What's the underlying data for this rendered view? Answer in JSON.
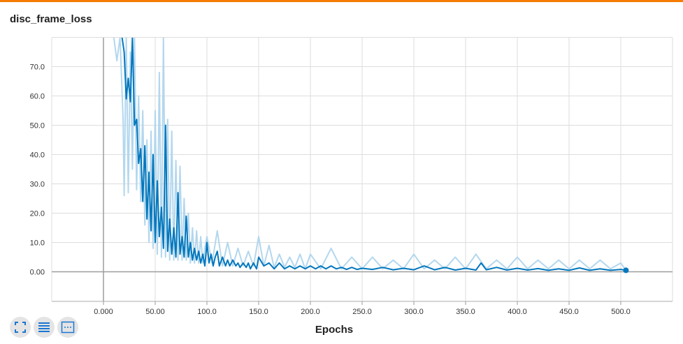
{
  "title": "disc_frame_loss",
  "colors": {
    "accent": "#f57c00",
    "line": "#0277bd",
    "raw": "#b3d7ee"
  },
  "controls": [
    {
      "name": "expand-chart-icon"
    },
    {
      "name": "list-icon"
    },
    {
      "name": "fit-domain-icon"
    }
  ],
  "chart_data": {
    "type": "line",
    "title": "disc_frame_loss",
    "xlabel": "Epochs",
    "ylabel": "",
    "xlim": [
      -50,
      550
    ],
    "ylim": [
      -10,
      80
    ],
    "x_ticks": [
      "0.000",
      "50.00",
      "100.0",
      "150.0",
      "200.0",
      "250.0",
      "300.0",
      "350.0",
      "400.0",
      "450.0",
      "500.0"
    ],
    "y_ticks": [
      "0.00",
      "10.0",
      "20.0",
      "30.0",
      "40.0",
      "50.0",
      "60.0",
      "70.0"
    ],
    "grid": true,
    "series": [
      {
        "role": "raw",
        "x": [
          10,
          13,
          16,
          19,
          20,
          22,
          24,
          26,
          28,
          30,
          32,
          34,
          36,
          38,
          40,
          42,
          44,
          46,
          48,
          50,
          52,
          54,
          56,
          58,
          60,
          62,
          64,
          66,
          68,
          70,
          72,
          74,
          76,
          78,
          80,
          82,
          84,
          86,
          88,
          90,
          92,
          94,
          96,
          98,
          100,
          105,
          110,
          115,
          120,
          125,
          130,
          135,
          140,
          145,
          150,
          155,
          160,
          165,
          170,
          175,
          180,
          185,
          190,
          195,
          200,
          210,
          220,
          230,
          240,
          250,
          260,
          270,
          280,
          290,
          300,
          310,
          320,
          330,
          340,
          350,
          360,
          370,
          380,
          390,
          400,
          410,
          420,
          430,
          440,
          450,
          460,
          470,
          480,
          490,
          500,
          505
        ],
        "y": [
          80,
          72,
          80,
          52,
          26,
          80,
          27,
          75,
          35,
          80,
          28,
          60,
          24,
          55,
          16,
          45,
          10,
          48,
          8,
          55,
          6,
          68,
          5,
          80,
          5,
          52,
          4,
          48,
          4,
          38,
          4,
          36,
          4,
          25,
          4,
          20,
          3,
          15,
          3,
          14,
          3,
          12,
          3,
          8,
          12,
          3,
          14,
          2,
          10,
          2,
          8,
          2,
          7,
          2,
          12,
          2,
          9,
          1.5,
          6,
          1.5,
          5,
          1.5,
          6,
          1,
          6,
          1,
          8,
          1,
          5,
          1,
          5,
          1,
          4,
          1,
          6,
          1,
          4,
          1,
          5,
          1,
          6,
          1,
          4,
          1,
          5,
          1,
          4,
          1,
          4,
          1,
          4,
          1,
          4,
          1,
          3,
          0.5
        ]
      },
      {
        "role": "smoothed",
        "x": [
          18,
          20,
          22,
          24,
          26,
          28,
          30,
          32,
          34,
          36,
          38,
          40,
          42,
          44,
          46,
          48,
          50,
          52,
          54,
          56,
          58,
          60,
          62,
          64,
          66,
          68,
          70,
          72,
          74,
          76,
          78,
          80,
          82,
          84,
          86,
          88,
          90,
          92,
          94,
          96,
          98,
          100,
          102,
          104,
          106,
          108,
          110,
          112,
          115,
          118,
          120,
          122,
          125,
          128,
          130,
          132,
          135,
          138,
          140,
          142,
          145,
          148,
          150,
          155,
          160,
          165,
          170,
          175,
          180,
          185,
          190,
          195,
          200,
          205,
          210,
          215,
          220,
          225,
          230,
          235,
          240,
          245,
          250,
          260,
          270,
          280,
          290,
          300,
          310,
          320,
          330,
          340,
          350,
          360,
          365,
          370,
          380,
          390,
          400,
          410,
          420,
          430,
          440,
          450,
          460,
          470,
          480,
          490,
          500,
          505
        ],
        "y": [
          80,
          75,
          59,
          66,
          58,
          80,
          50,
          52,
          37,
          42,
          24,
          43,
          18,
          34,
          14,
          40,
          10,
          31,
          12,
          22,
          8,
          50,
          7,
          18,
          6,
          15,
          5,
          27,
          6,
          12,
          5,
          19,
          5,
          10,
          4,
          8,
          4,
          7,
          3,
          6,
          2,
          10,
          3,
          6,
          2,
          5,
          7,
          2,
          5,
          2,
          4,
          2,
          4,
          2,
          3,
          1.5,
          3,
          1.5,
          3,
          1,
          3,
          1,
          5,
          2,
          3,
          1,
          3,
          1,
          2,
          1,
          2,
          1,
          2,
          1,
          2,
          1,
          2,
          1,
          1.5,
          0.8,
          1.5,
          0.8,
          1.2,
          0.8,
          1.5,
          0.7,
          1.2,
          0.7,
          2,
          0.7,
          1.5,
          0.6,
          1.2,
          0.6,
          3,
          0.7,
          1.5,
          0.6,
          1.2,
          0.6,
          1.1,
          0.5,
          1,
          0.5,
          1.3,
          0.5,
          1,
          0.5,
          0.8,
          0.5
        ]
      }
    ]
  }
}
